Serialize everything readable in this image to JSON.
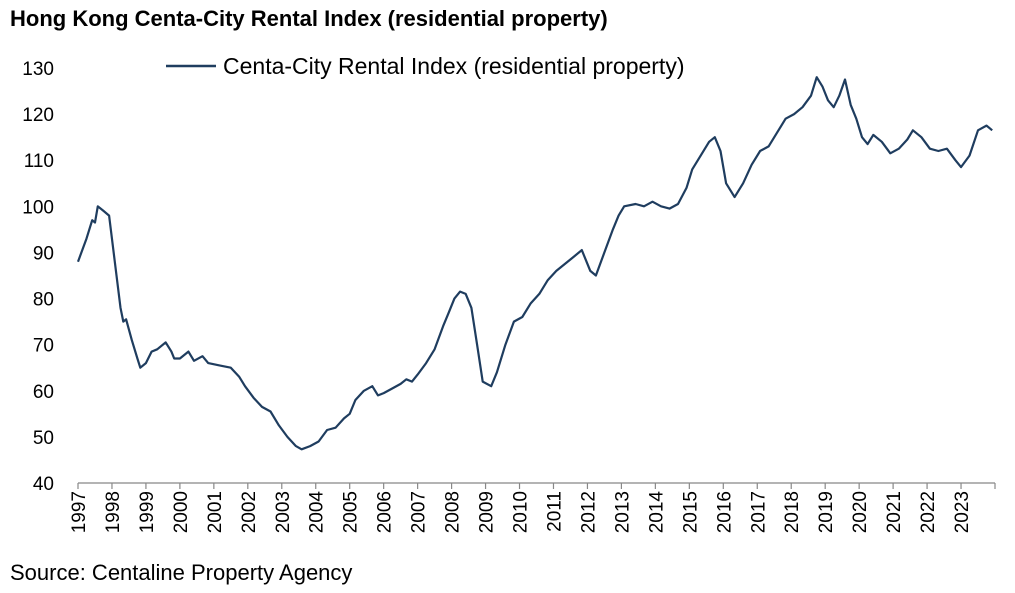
{
  "chart_data": {
    "type": "line",
    "title": "Hong Kong Centa-City Rental Index (residential property)",
    "source": "Source: Centaline Property Agency",
    "xlabel": "",
    "ylabel": "",
    "ylim": [
      40,
      130
    ],
    "yticks": [
      40,
      50,
      60,
      70,
      80,
      90,
      100,
      110,
      120,
      130
    ],
    "xticks": [
      "1997",
      "1998",
      "1999",
      "2000",
      "2001",
      "2002",
      "2003",
      "2004",
      "2005",
      "2006",
      "2007",
      "2008",
      "2009",
      "2010",
      "2011",
      "2012",
      "2013",
      "2014",
      "2015",
      "2016",
      "2017",
      "2018",
      "2019",
      "2020",
      "2021",
      "2022",
      "2023"
    ],
    "xlim": [
      "1997-01",
      "2024-01"
    ],
    "grid": false,
    "legend": "top",
    "color": "#1f3d5f",
    "series": [
      {
        "name": "Centa-City Rental Index (residential property)",
        "points": [
          [
            "1997-01",
            88
          ],
          [
            "1997-04",
            93
          ],
          [
            "1997-06",
            97
          ],
          [
            "1997-07",
            96.5
          ],
          [
            "1997-08",
            100
          ],
          [
            "1997-10",
            99
          ],
          [
            "1997-12",
            98
          ],
          [
            "1998-02",
            88
          ],
          [
            "1998-04",
            78
          ],
          [
            "1998-05",
            75
          ],
          [
            "1998-06",
            75.5
          ],
          [
            "1998-08",
            71
          ],
          [
            "1998-10",
            67
          ],
          [
            "1998-11",
            65
          ],
          [
            "1999-01",
            66
          ],
          [
            "1999-03",
            68.5
          ],
          [
            "1999-05",
            69
          ],
          [
            "1999-08",
            70.5
          ],
          [
            "1999-10",
            68.5
          ],
          [
            "1999-11",
            67
          ],
          [
            "2000-01",
            67
          ],
          [
            "2000-04",
            68.5
          ],
          [
            "2000-06",
            66.5
          ],
          [
            "2000-09",
            67.5
          ],
          [
            "2000-11",
            66
          ],
          [
            "2001-03",
            65.5
          ],
          [
            "2001-07",
            65
          ],
          [
            "2001-10",
            63
          ],
          [
            "2001-12",
            61
          ],
          [
            "2002-03",
            58.5
          ],
          [
            "2002-06",
            56.5
          ],
          [
            "2002-09",
            55.5
          ],
          [
            "2002-12",
            52.5
          ],
          [
            "2003-03",
            50
          ],
          [
            "2003-06",
            48
          ],
          [
            "2003-08",
            47.3
          ],
          [
            "2003-11",
            48
          ],
          [
            "2004-02",
            49
          ],
          [
            "2004-05",
            51.5
          ],
          [
            "2004-08",
            52
          ],
          [
            "2004-11",
            54
          ],
          [
            "2005-01",
            55
          ],
          [
            "2005-03",
            58
          ],
          [
            "2005-06",
            60
          ],
          [
            "2005-09",
            61
          ],
          [
            "2005-11",
            59
          ],
          [
            "2006-01",
            59.5
          ],
          [
            "2006-04",
            60.5
          ],
          [
            "2006-07",
            61.5
          ],
          [
            "2006-09",
            62.5
          ],
          [
            "2006-11",
            62
          ],
          [
            "2007-01",
            63.5
          ],
          [
            "2007-04",
            66
          ],
          [
            "2007-07",
            69
          ],
          [
            "2007-10",
            74
          ],
          [
            "2007-12",
            77
          ],
          [
            "2008-02",
            80
          ],
          [
            "2008-04",
            81.5
          ],
          [
            "2008-06",
            81
          ],
          [
            "2008-08",
            78
          ],
          [
            "2008-10",
            70
          ],
          [
            "2008-12",
            62
          ],
          [
            "2009-03",
            61
          ],
          [
            "2009-05",
            64
          ],
          [
            "2009-08",
            70
          ],
          [
            "2009-11",
            75
          ],
          [
            "2010-02",
            76
          ],
          [
            "2010-05",
            79
          ],
          [
            "2010-08",
            81
          ],
          [
            "2010-11",
            84
          ],
          [
            "2011-02",
            86
          ],
          [
            "2011-05",
            87.5
          ],
          [
            "2011-08",
            89
          ],
          [
            "2011-11",
            90.5
          ],
          [
            "2012-02",
            86
          ],
          [
            "2012-04",
            85
          ],
          [
            "2012-07",
            90
          ],
          [
            "2012-10",
            95
          ],
          [
            "2012-12",
            98
          ],
          [
            "2013-02",
            100
          ],
          [
            "2013-06",
            100.5
          ],
          [
            "2013-09",
            100
          ],
          [
            "2013-12",
            101
          ],
          [
            "2014-03",
            100
          ],
          [
            "2014-06",
            99.5
          ],
          [
            "2014-09",
            100.5
          ],
          [
            "2014-12",
            104
          ],
          [
            "2015-02",
            108
          ],
          [
            "2015-05",
            111
          ],
          [
            "2015-08",
            114
          ],
          [
            "2015-10",
            115
          ],
          [
            "2015-12",
            112
          ],
          [
            "2016-02",
            105
          ],
          [
            "2016-05",
            102
          ],
          [
            "2016-08",
            105
          ],
          [
            "2016-11",
            109
          ],
          [
            "2017-02",
            112
          ],
          [
            "2017-05",
            113
          ],
          [
            "2017-08",
            116
          ],
          [
            "2017-11",
            119
          ],
          [
            "2018-02",
            120
          ],
          [
            "2018-05",
            121.5
          ],
          [
            "2018-08",
            124
          ],
          [
            "2018-10",
            128
          ],
          [
            "2018-12",
            126
          ],
          [
            "2019-02",
            123
          ],
          [
            "2019-04",
            121.5
          ],
          [
            "2019-06",
            124
          ],
          [
            "2019-08",
            127.5
          ],
          [
            "2019-10",
            122
          ],
          [
            "2019-12",
            119
          ],
          [
            "2020-02",
            115
          ],
          [
            "2020-04",
            113.5
          ],
          [
            "2020-06",
            115.5
          ],
          [
            "2020-09",
            114
          ],
          [
            "2020-12",
            111.5
          ],
          [
            "2021-03",
            112.5
          ],
          [
            "2021-06",
            114.5
          ],
          [
            "2021-08",
            116.5
          ],
          [
            "2021-11",
            115
          ],
          [
            "2022-02",
            112.5
          ],
          [
            "2022-05",
            112
          ],
          [
            "2022-08",
            112.5
          ],
          [
            "2022-11",
            110
          ],
          [
            "2023-01",
            108.5
          ],
          [
            "2023-04",
            111
          ],
          [
            "2023-07",
            116.5
          ],
          [
            "2023-10",
            117.5
          ],
          [
            "2023-12",
            116.5
          ]
        ]
      }
    ]
  }
}
